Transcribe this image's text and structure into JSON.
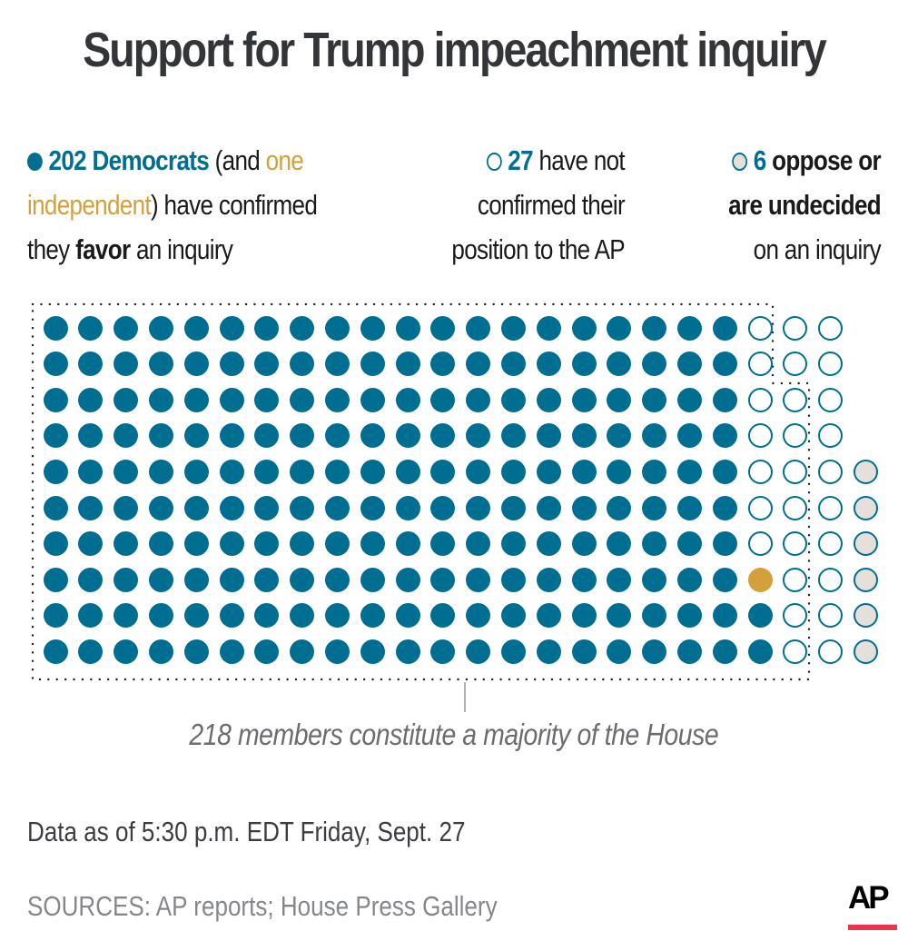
{
  "title": "Support for Trump impeachment inquiry",
  "legend": {
    "favor": {
      "count": "202 Democrats",
      "part1": " (and ",
      "independent_a": "one",
      "independent_b": "independent",
      "part2": ") have confirmed",
      "part3": "they ",
      "bold": "favor",
      "part4": " an inquiry"
    },
    "unconfirmed": {
      "count": "27",
      "line1": " have not",
      "line2": "confirmed their",
      "line3": "position to the AP"
    },
    "oppose": {
      "count": "6",
      "line1": " oppose or",
      "line2": "are undecided",
      "line3": "on an inquiry"
    }
  },
  "majority_note": "218 members constitute a majority of the House",
  "data_as_of": "Data as of 5:30 p.m. EDT Friday, Sept. 27",
  "sources": "SOURCES: AP reports; House Press Gallery",
  "logo": "AP",
  "colors": {
    "democrat": "#006e91",
    "independent": "#d4a03c",
    "unconfirmed_fill": "#ffffff",
    "oppose_fill": "#e5e1da",
    "logo_bar": "#e8344d"
  },
  "chart_data": {
    "type": "waffle",
    "title": "Support for Trump impeachment inquiry",
    "rows": 10,
    "columns": 24,
    "categories": [
      "Democrats favor inquiry",
      "Independent favors inquiry",
      "Have not confirmed position",
      "Oppose or undecided"
    ],
    "values": [
      202,
      1,
      27,
      6
    ],
    "total": 236,
    "majority_threshold": 218,
    "column_layout": [
      {
        "cols": "1-20",
        "rows": "1-10",
        "category": "Democrats favor inquiry"
      },
      {
        "cols": "21",
        "rows": "1-7",
        "category": "Have not confirmed position"
      },
      {
        "cols": "21",
        "rows": "8",
        "category": "Independent favors inquiry"
      },
      {
        "cols": "21",
        "rows": "9-10",
        "category": "Democrats favor inquiry"
      },
      {
        "cols": "22-23",
        "rows": "1-10",
        "category": "Have not confirmed position"
      },
      {
        "cols": "24",
        "rows": "5-10",
        "category": "Oppose or undecided"
      }
    ],
    "annotation": "218 members constitute a majority of the House"
  }
}
